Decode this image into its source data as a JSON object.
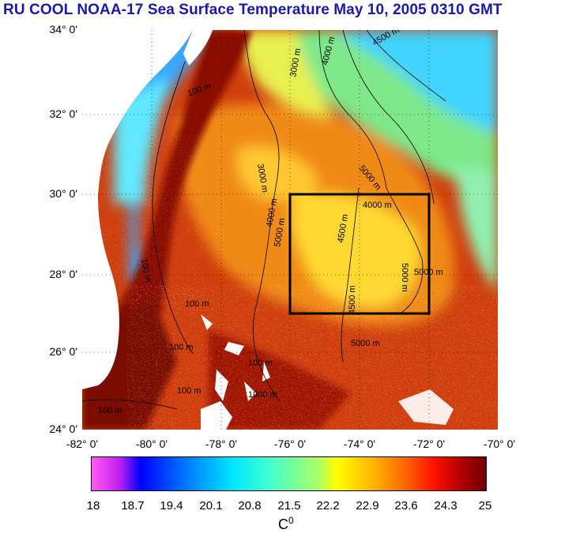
{
  "title": "RU COOL  NOAA-17 Sea Surface Temperature May 10, 2005 0310 GMT",
  "map": {
    "lat_labels": [
      "34° 0'",
      "32° 0'",
      "30° 0'",
      "28° 0'",
      "26° 0'",
      "24° 0'"
    ],
    "lon_labels": [
      "-82° 0'",
      "-80° 0'",
      "-78° 0'",
      "-76° 0'",
      "-74° 0'",
      "-72° 0'",
      "-70° 0'"
    ],
    "lat_range": [
      24,
      34
    ],
    "lon_range": [
      -82,
      -70
    ],
    "study_box": {
      "lon": [
        -76,
        -72
      ],
      "lat": [
        27,
        30
      ]
    },
    "contour_labels": [
      "100 m",
      "100 m",
      "100 m",
      "100 m",
      "100 m",
      "100 m",
      "100 m",
      "1000 m",
      "3000 m",
      "3000 m",
      "4000 m",
      "4000 m",
      "4500 m",
      "5000 m",
      "5000 m",
      "5000 m",
      "5000 m",
      "4500 m",
      "4500 m",
      "4000 m",
      "5000 m"
    ]
  },
  "colorbar": {
    "ticks": [
      "18",
      "18.7",
      "19.4",
      "20.1",
      "20.8",
      "21.5",
      "22.2",
      "22.9",
      "23.6",
      "24.3",
      "25"
    ],
    "unit": "C",
    "unit_sup": "0",
    "min": 18,
    "max": 25
  },
  "colors": {
    "title": "#1a1aa8",
    "land": "#ffffff",
    "warm": "#c83a0a",
    "gulfstream": "#8a0c04",
    "cool_shelf": "#3fd0ff"
  }
}
